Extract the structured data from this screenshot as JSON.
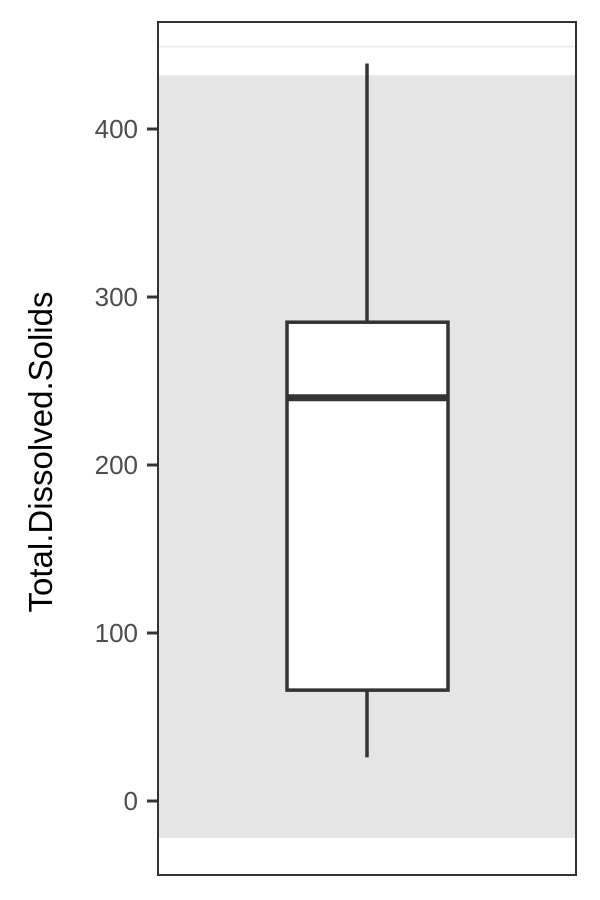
{
  "chart_data": {
    "type": "boxplot",
    "title": "",
    "xlabel": "",
    "ylabel": "Total.Dissolved.Solids",
    "ylim": [
      -40,
      450
    ],
    "y_ticks": [
      0,
      100,
      200,
      300,
      400
    ],
    "grid": false,
    "legend": "none",
    "shaded_band": [
      -22,
      432
    ],
    "reference_line": 449,
    "box": {
      "whisker_low": 26,
      "q1": 66,
      "median": 240,
      "q3": 285,
      "whisker_high": 439
    },
    "colors": {
      "panel_border": "#333333",
      "band_fill": "#e5e5e5",
      "box_fill": "#ffffff",
      "box_stroke": "#333333",
      "reference_line": "#ebebeb",
      "tick_label": "#4d4d4d",
      "axis_title": "#000000"
    }
  }
}
